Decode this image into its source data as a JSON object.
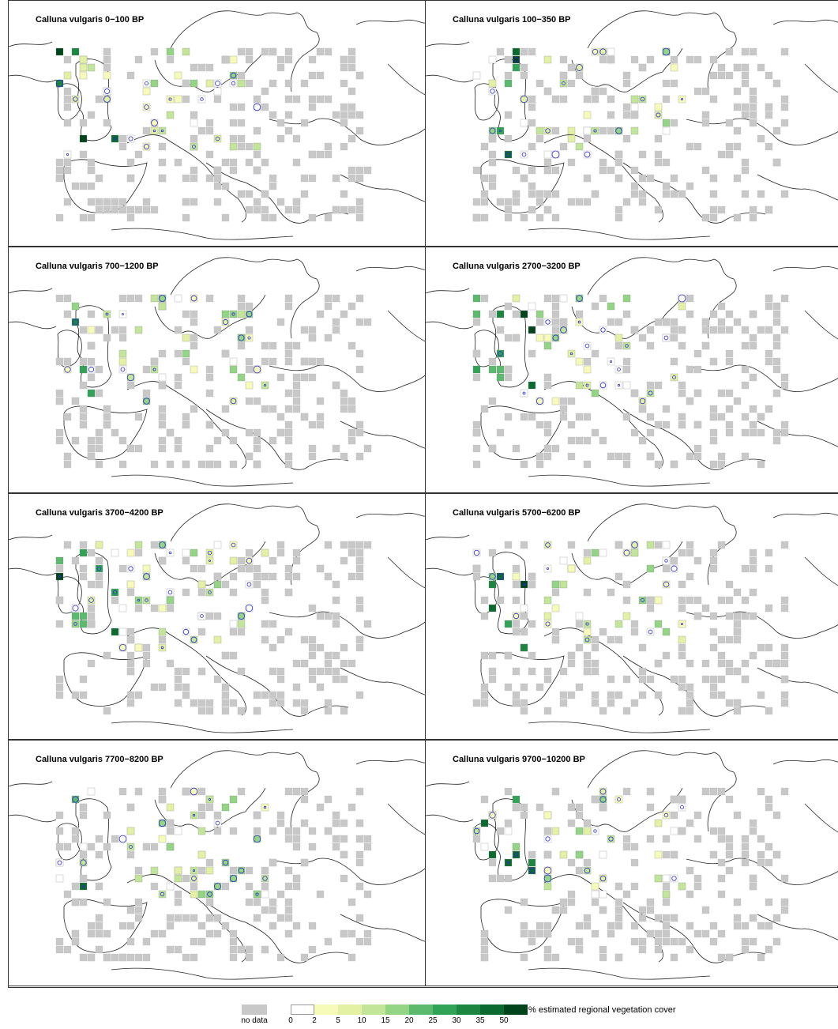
{
  "panels": [
    {
      "title": "Calluna vulgaris 0−100 BP"
    },
    {
      "title": "Calluna vulgaris 100−350 BP"
    },
    {
      "title": "Calluna vulgaris 700−1200 BP"
    },
    {
      "title": "Calluna vulgaris 2700−3200 BP"
    },
    {
      "title": "Calluna vulgaris 3700−4200 BP"
    },
    {
      "title": "Calluna vulgaris 5700−6200 BP"
    },
    {
      "title": "Calluna vulgaris 7700−8200 BP"
    },
    {
      "title": "Calluna vulgaris 9700−10200 BP"
    }
  ],
  "legend": {
    "no_data_label": "no data",
    "no_data_color": "#c8c8c8",
    "title": "% estimated regional vegetation cover",
    "ticks": [
      "0",
      "2",
      "5",
      "10",
      "15",
      "20",
      "25",
      "30",
      "35",
      "50"
    ],
    "colors": [
      "#ffffff",
      "#f7fbb9",
      "#e3f1a4",
      "#c2e59a",
      "#93d485",
      "#5bba6e",
      "#31a356",
      "#1c853f",
      "#0b6a30",
      "#00441b"
    ]
  },
  "colors": {
    "land_outline": "#222222",
    "circle_stroke": "#2b2bd6"
  }
}
